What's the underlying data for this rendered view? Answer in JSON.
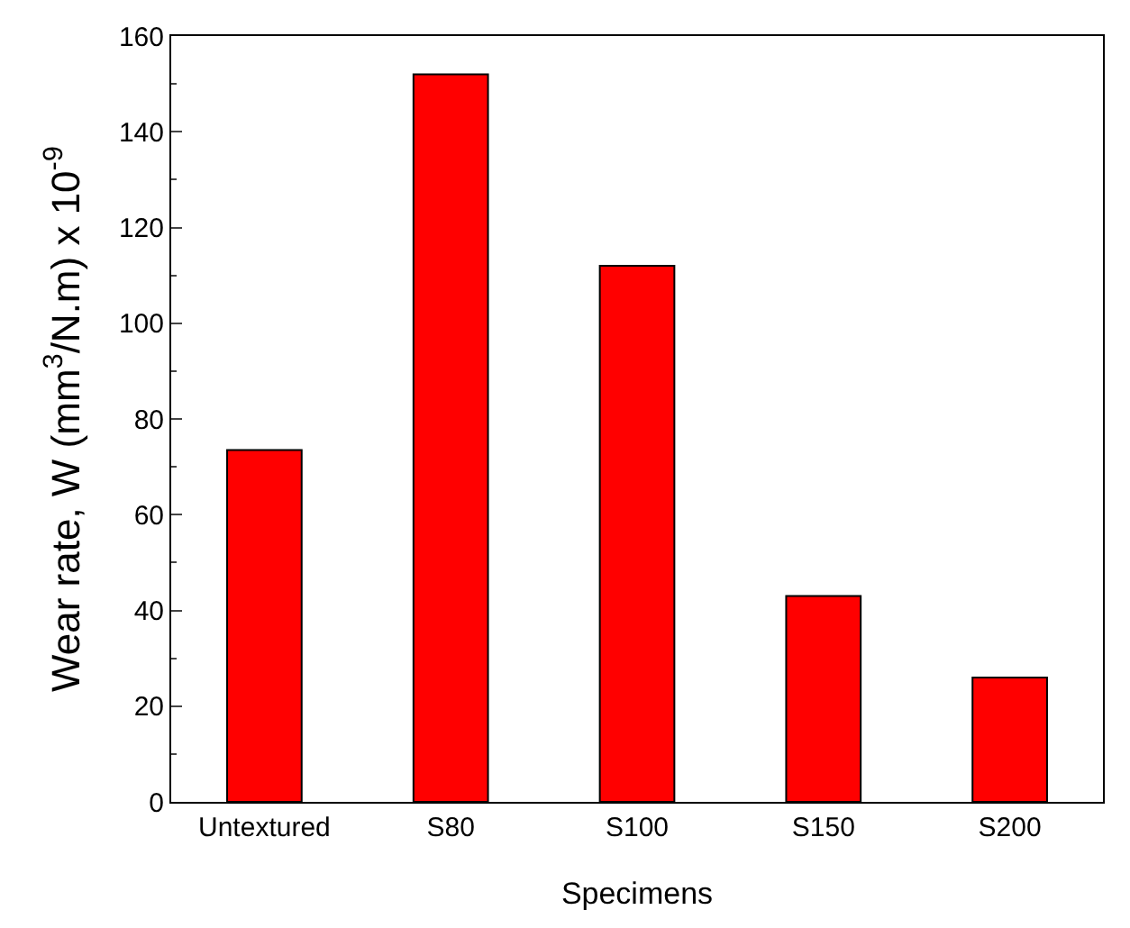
{
  "chart_data": {
    "type": "bar",
    "xlabel": "Specimens",
    "ylabel": "Wear rate, W (mm$^{3}$/N.m) x 10$^{-9}$",
    "categories": [
      "Untextured",
      "S80",
      "S100",
      "S150",
      "S200"
    ],
    "values": [
      73.5,
      152,
      112,
      43,
      26
    ],
    "color": "#ff0000",
    "ylim": [
      0,
      160
    ],
    "yticks": [
      0,
      20,
      40,
      60,
      80,
      100,
      120,
      140,
      160
    ],
    "legend": false
  }
}
